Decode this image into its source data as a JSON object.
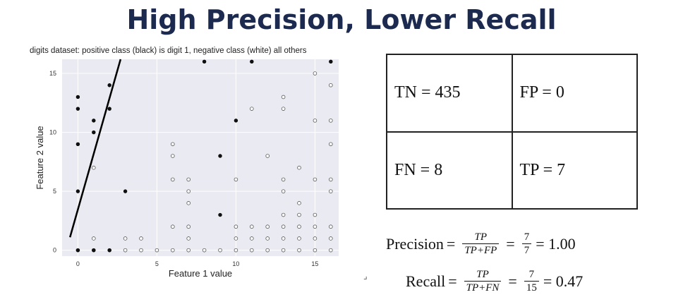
{
  "slide": {
    "title": "High Precision, Lower Recall"
  },
  "chart_data": {
    "type": "scatter",
    "title": "digits dataset: positive class (black) is digit 1, negative class (white) all others",
    "xlabel": "Feature 1 value",
    "ylabel": "Feature 2 value",
    "xlim": [
      -1,
      16.5
    ],
    "ylim": [
      -0.5,
      16.2
    ],
    "xticks": [
      0,
      5,
      10,
      15
    ],
    "yticks": [
      0,
      5,
      10,
      15
    ],
    "grid": true,
    "background": "#eaeaf2",
    "series": [
      {
        "values": [
          [
            0,
            13
          ],
          [
            0,
            12
          ],
          [
            0,
            9
          ],
          [
            0,
            5
          ],
          [
            1,
            11
          ],
          [
            1,
            10
          ],
          [
            2,
            14
          ],
          [
            2,
            12
          ],
          [
            3,
            5
          ],
          [
            8,
            16
          ],
          [
            11,
            16
          ],
          [
            16,
            16
          ],
          [
            10,
            11
          ],
          [
            9,
            8
          ],
          [
            9,
            3
          ],
          [
            0,
            0
          ],
          [
            1,
            0
          ],
          [
            2,
            0
          ]
        ],
        "color": "#111111"
      },
      {
        "values": [
          [
            1,
            7
          ],
          [
            6,
            9
          ],
          [
            6,
            8
          ],
          [
            6,
            6
          ],
          [
            6,
            2
          ],
          [
            7,
            6
          ],
          [
            7,
            5
          ],
          [
            7,
            4
          ],
          [
            7,
            2
          ],
          [
            7,
            1
          ],
          [
            10,
            6
          ],
          [
            10,
            2
          ],
          [
            10,
            1
          ],
          [
            11,
            12
          ],
          [
            11,
            2
          ],
          [
            11,
            1
          ],
          [
            12,
            8
          ],
          [
            12,
            2
          ],
          [
            12,
            1
          ],
          [
            13,
            13
          ],
          [
            13,
            12
          ],
          [
            13,
            6
          ],
          [
            13,
            5
          ],
          [
            13,
            3
          ],
          [
            13,
            2
          ],
          [
            13,
            1
          ],
          [
            14,
            7
          ],
          [
            14,
            4
          ],
          [
            14,
            3
          ],
          [
            14,
            2
          ],
          [
            14,
            1
          ],
          [
            15,
            15
          ],
          [
            15,
            6
          ],
          [
            15,
            3
          ],
          [
            15,
            2
          ],
          [
            15,
            1
          ],
          [
            16,
            14
          ],
          [
            16,
            11
          ],
          [
            16,
            9
          ],
          [
            16,
            6
          ],
          [
            16,
            5
          ],
          [
            16,
            2
          ],
          [
            16,
            1
          ],
          [
            1,
            1
          ],
          [
            3,
            1
          ],
          [
            4,
            1
          ],
          [
            15,
            11
          ],
          [
            0,
            0
          ],
          [
            1,
            0
          ],
          [
            2,
            0
          ],
          [
            3,
            0
          ],
          [
            4,
            0
          ],
          [
            5,
            0
          ],
          [
            6,
            0
          ],
          [
            7,
            0
          ],
          [
            8,
            0
          ],
          [
            9,
            0
          ],
          [
            10,
            0
          ],
          [
            11,
            0
          ],
          [
            12,
            0
          ],
          [
            13,
            0
          ],
          [
            14,
            0
          ],
          [
            15,
            0
          ],
          [
            16,
            0
          ]
        ],
        "color": "#ffffff"
      }
    ],
    "decision_line": {
      "from": [
        -0.5,
        1.1
      ],
      "to": [
        2.7,
        16.2
      ],
      "color": "#000000"
    }
  },
  "confusion_matrix": {
    "tn": "TN =  435",
    "fp": "FP =  0",
    "fn": "FN = 8",
    "tp": "TP = 7"
  },
  "precision": {
    "label": "Precision",
    "eq": "=",
    "frac_num": "TP",
    "frac_den": "TP+FP",
    "val_num": "7",
    "val_den": "7",
    "result": "= 1.00"
  },
  "recall": {
    "label": "Recall",
    "eq": "=",
    "frac_num": "TP",
    "frac_den": "TP+FN",
    "val_num": "7",
    "val_den": "15",
    "result": "= 0.47"
  },
  "cursor_glyph": "⌟"
}
